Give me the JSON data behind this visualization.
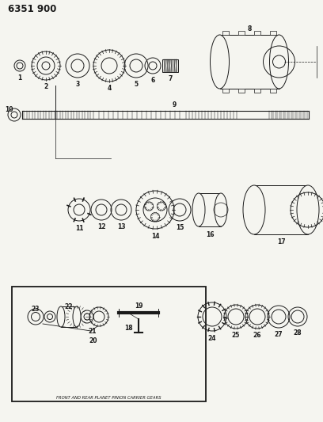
{
  "title": "6351 900",
  "bg_color": "#f5f5f0",
  "line_color": "#1a1a1a",
  "figsize": [
    4.08,
    5.33
  ],
  "dpi": 100,
  "box_label": "FRONT AND REAR PLANET PINION CARRIER GEARS"
}
